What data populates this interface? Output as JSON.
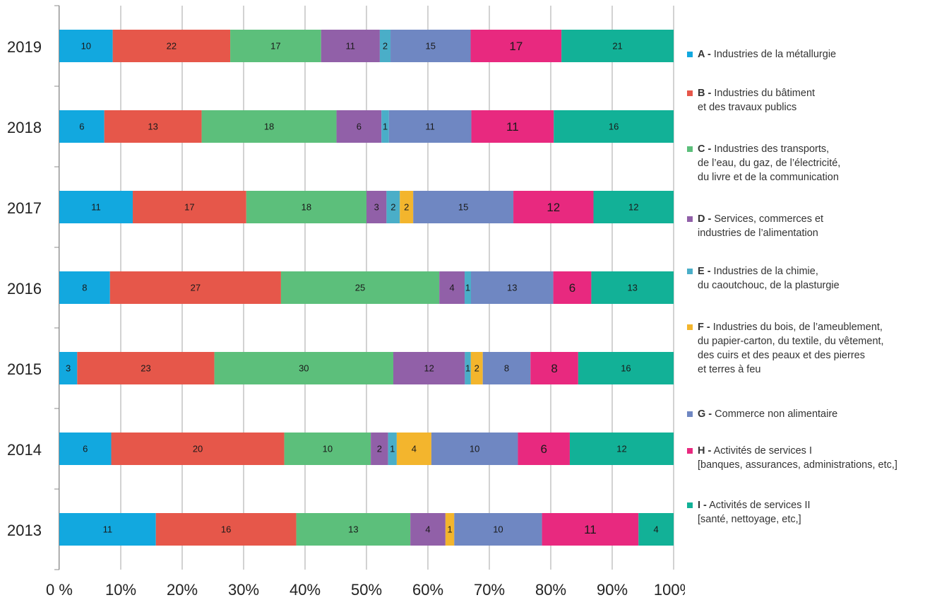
{
  "chart_data": {
    "type": "bar",
    "orientation": "horizontal",
    "stacked": "percent",
    "categories": [
      "2019",
      "2018",
      "2017",
      "2016",
      "2015",
      "2014",
      "2013"
    ],
    "x_ticks": [
      "0 %",
      "10%",
      "20%",
      "30%",
      "40%",
      "50%",
      "60%",
      "70%",
      "80%",
      "90%",
      "100%"
    ],
    "xlim": [
      0,
      100
    ],
    "grid": "vertical",
    "legend_position": "right",
    "series": [
      {
        "code": "A",
        "name": "Industries de la métallurgie",
        "lines": [
          "Industries de la métallurgie"
        ],
        "color": "#12a8df",
        "values": [
          10,
          6,
          11,
          8,
          3,
          6,
          11
        ]
      },
      {
        "code": "B",
        "name": "Industries du bâtiment et des travaux publics",
        "lines": [
          "Industries du bâtiment",
          "et des travaux publics"
        ],
        "color": "#e6574a",
        "values": [
          22,
          13,
          17,
          27,
          23,
          20,
          16
        ]
      },
      {
        "code": "C",
        "name": "Industries des transports, de l’eau, du gaz, de l’électricité, du livre et de la communication",
        "lines": [
          "Industries des transports,",
          "de l’eau, du gaz, de l’électricité,",
          "du livre et de la communication"
        ],
        "color": "#5cbf7b",
        "values": [
          17,
          18,
          18,
          25,
          30,
          10,
          13
        ]
      },
      {
        "code": "D",
        "name": "Services, commerces et industries de l’alimentation",
        "lines": [
          "Services, commerces et",
          "industries de l’alimentation"
        ],
        "color": "#9160a8",
        "values": [
          11,
          6,
          3,
          4,
          12,
          2,
          4
        ]
      },
      {
        "code": "E",
        "name": "Industries de la chimie, du caoutchouc, de la plasturgie",
        "lines": [
          "Industries de la chimie,",
          "du caoutchouc, de la plasturgie"
        ],
        "color": "#4aaec8",
        "values": [
          2,
          1,
          2,
          1,
          1,
          1,
          0
        ]
      },
      {
        "code": "F",
        "name": "Industries du bois, de l’ameublement, du papier-carton, du textile, du vêtement, des cuirs et des peaux et des pierres et terres à feu",
        "lines": [
          "Industries du bois, de l’ameublement,",
          "du papier-carton, du textile, du vêtement,",
          "des cuirs et des peaux et des pierres",
          "et terres à feu"
        ],
        "color": "#f3b52d",
        "values": [
          0,
          0,
          2,
          0,
          2,
          4,
          1
        ]
      },
      {
        "code": "G",
        "name": "Commerce non alimentaire",
        "lines": [
          "Commerce non alimentaire"
        ],
        "color": "#6f87c2",
        "values": [
          15,
          11,
          15,
          13,
          8,
          10,
          10
        ]
      },
      {
        "code": "H",
        "name": "Activités de services I [banques, assurances, administrations, etc,]",
        "lines": [
          "Activités de services I",
          "[banques, assurances, administrations, etc,]"
        ],
        "color": "#e8297f",
        "values": [
          17,
          11,
          12,
          6,
          8,
          6,
          11
        ]
      },
      {
        "code": "I",
        "name": "Activités de services II [santé, nettoyage, etc,]",
        "lines": [
          "Activités de services II",
          "[santé, nettoyage, etc,]"
        ],
        "color": "#12b197",
        "values": [
          21,
          16,
          12,
          13,
          16,
          12,
          4
        ]
      }
    ]
  }
}
